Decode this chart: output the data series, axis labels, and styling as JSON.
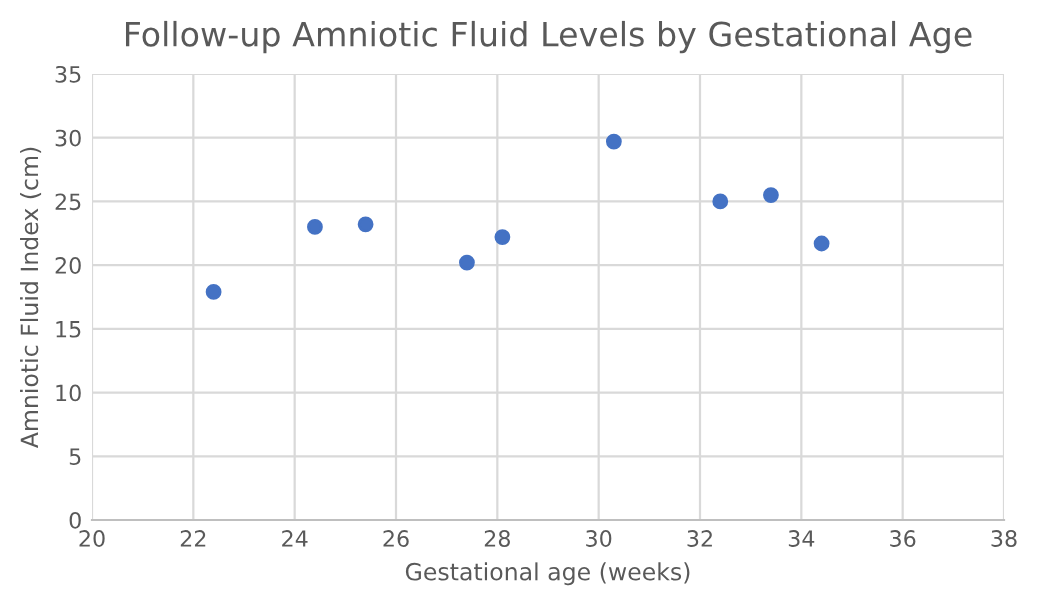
{
  "chart_data": {
    "type": "scatter",
    "title": "Follow-up Amniotic Fluid Levels by Gestational Age",
    "xlabel": "Gestational age (weeks)",
    "ylabel": "Amniotic Fluid Index (cm)",
    "x": [
      22.4,
      24.4,
      25.4,
      27.4,
      28.1,
      30.3,
      32.4,
      33.4,
      34.4
    ],
    "series": [
      {
        "color": "#4472c4",
        "values": [
          17.9,
          23.0,
          23.2,
          20.2,
          22.2,
          29.7,
          25.0,
          25.5,
          21.7
        ]
      }
    ],
    "xlim": [
      20,
      38
    ],
    "xticks": [
      20,
      22,
      24,
      26,
      28,
      30,
      32,
      34,
      36,
      38
    ],
    "ylim": [
      0,
      35
    ],
    "yticks": [
      0,
      5,
      10,
      15,
      20,
      25,
      30,
      35
    ],
    "grid": true,
    "marker": "circle"
  }
}
